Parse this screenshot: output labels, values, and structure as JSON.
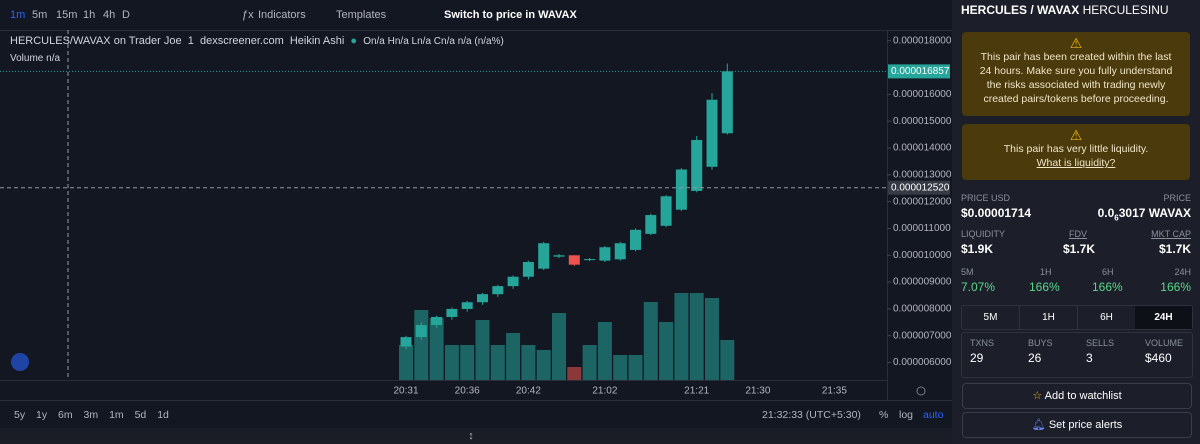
{
  "toolbar": {
    "intervals": [
      "1m",
      "5m",
      "15m",
      "1h",
      "4h",
      "D"
    ],
    "indicators": "Indicators",
    "templates": "Templates",
    "switch": "Switch to price in WAVAX"
  },
  "legend": {
    "title": "HERCULES/WAVAX on Trader Joe",
    "interval": "1",
    "source": "dexscreener.com",
    "style": "Heikin Ashi",
    "ohlc": "On/a Hn/a Ln/a Cn/a n/a (n/a%)",
    "volume": "Volume n/a"
  },
  "chart_data": {
    "type": "candlestick",
    "categories": [
      "20:31",
      null,
      null,
      null,
      "20:36",
      null,
      null,
      null,
      "20:42",
      null,
      null,
      null,
      null,
      "21:02",
      null,
      null,
      null,
      null,
      null,
      "21:21",
      null,
      null,
      null,
      "21:30",
      null,
      null,
      null,
      null,
      "21:35"
    ],
    "open": [
      6.6e-06,
      6.95e-06,
      7.4e-06,
      7.7e-06,
      8e-06,
      8.25e-06,
      8.55e-06,
      8.85e-06,
      9.2e-06,
      9.5e-06,
      9.95e-06,
      1e-05,
      9.82e-06,
      9.8e-06,
      9.85e-06,
      1.02e-05,
      1.08e-05,
      1.11e-05,
      1.17e-05,
      1.24e-05,
      1.33e-05,
      1.455e-05,
      null,
      null,
      null,
      null,
      null,
      null,
      null
    ],
    "high": [
      7e-06,
      7.5e-06,
      7.75e-06,
      8.05e-06,
      8.3e-06,
      8.6e-06,
      8.9e-06,
      9.25e-06,
      9.8e-06,
      1.05e-05,
      1.005e-05,
      1e-05,
      9.9e-06,
      1.035e-05,
      1.05e-05,
      1.1e-05,
      1.155e-05,
      1.225e-05,
      1.325e-05,
      1.445e-05,
      1.605e-05,
      1.715e-05,
      null,
      null,
      null,
      null,
      null,
      null,
      null
    ],
    "low": [
      6.5e-06,
      6.85e-06,
      7.3e-06,
      7.6e-06,
      7.9e-06,
      8.15e-06,
      8.45e-06,
      8.75e-06,
      9.1e-06,
      9.45e-06,
      9.9e-06,
      9.6e-06,
      9.78e-06,
      9.75e-06,
      9.8e-06,
      1.015e-05,
      1.075e-05,
      1.105e-05,
      1.165e-05,
      1.235e-05,
      1.32e-05,
      1.45e-05,
      null,
      null,
      null,
      null,
      null,
      null,
      null
    ],
    "close": [
      6.95e-06,
      7.4e-06,
      7.7e-06,
      8e-06,
      8.25e-06,
      8.55e-06,
      8.85e-06,
      9.2e-06,
      9.75e-06,
      1.045e-05,
      1e-05,
      9.65e-06,
      9.86e-06,
      1.03e-05,
      1.045e-05,
      1.095e-05,
      1.15e-05,
      1.22e-05,
      1.32e-05,
      1.43e-05,
      1.58e-05,
      1.6857e-05,
      null,
      null,
      null,
      null,
      null,
      null,
      null
    ],
    "volume": [
      35,
      70,
      62,
      35,
      35,
      60,
      35,
      47,
      35,
      30,
      67,
      13,
      35,
      58,
      25,
      25,
      78,
      58,
      87,
      87,
      82,
      40,
      null,
      null,
      null,
      null,
      null,
      null,
      null
    ],
    "vlim": [
      0,
      100
    ],
    "ylim": [
      5.35e-06,
      1.84e-05
    ],
    "yticks": [
      {
        "value": 1.8e-05,
        "label": "0.000018000"
      },
      {
        "value": 1.6e-05,
        "label": "0.000016000"
      },
      {
        "value": 1.5e-05,
        "label": "0.000015000"
      },
      {
        "value": 1.4e-05,
        "label": "0.000014000"
      },
      {
        "value": 1.3e-05,
        "label": "0.000013000"
      },
      {
        "value": 1.2e-05,
        "label": "0.000012000"
      },
      {
        "value": 1.1e-05,
        "label": "0.000011000"
      },
      {
        "value": 1e-05,
        "label": "0.000010000"
      },
      {
        "value": 9e-06,
        "label": "0.000009000"
      },
      {
        "value": 8e-06,
        "label": "0.000008000"
      },
      {
        "value": 7e-06,
        "label": "0.000007000"
      },
      {
        "value": 6e-06,
        "label": "0.000006000"
      }
    ],
    "colors": {
      "up": "#26a69a",
      "down": "#ef5350"
    },
    "last_price": {
      "value": 1.6857e-05,
      "label": "0.000016857"
    },
    "crosshair_price": {
      "value": 1.252e-05,
      "label": "0.000012520"
    }
  },
  "timebar": {
    "ranges": [
      "5y",
      "1y",
      "6m",
      "3m",
      "1m",
      "5d",
      "1d"
    ],
    "clock": "21:32:33 (UTC+5:30)",
    "percent": "%",
    "log": "log",
    "auto": "auto"
  },
  "panel": {
    "pair": "HERCULES / WAVAX",
    "token": "HERCULESINU",
    "warning_age": "This pair has been created within the last 24 hours. Make sure you fully understand the risks associated with trading newly created pairs/tokens before proceeding.",
    "warning_liquidity": "This pair has very little liquidity.",
    "liquidity_link": "What is liquidity?",
    "price_usd_label": "PRICE USD",
    "price_usd": "$0.00001714",
    "price_label": "PRICE",
    "price_native": [
      "0.0",
      "6",
      "3017 WAVAX"
    ],
    "liquidity_label": "LIQUIDITY",
    "liquidity": "$1.9K",
    "fdv_label": "FDV",
    "fdv": "$1.7K",
    "mcap_label": "MKT CAP",
    "mcap": "$1.7K",
    "changes": [
      {
        "label": "5M",
        "value": "7.07%"
      },
      {
        "label": "1H",
        "value": "166%"
      },
      {
        "label": "6H",
        "value": "166%"
      },
      {
        "label": "24H",
        "value": "166%"
      }
    ],
    "tabs": [
      "5M",
      "1H",
      "6H",
      "24H"
    ],
    "stats": [
      {
        "label": "TXNS",
        "value": "29"
      },
      {
        "label": "BUYS",
        "value": "26"
      },
      {
        "label": "SELLS",
        "value": "3"
      },
      {
        "label": "VOLUME",
        "value": "$460"
      }
    ],
    "watchlist": "Add to watchlist",
    "alerts": "Set price alerts"
  }
}
